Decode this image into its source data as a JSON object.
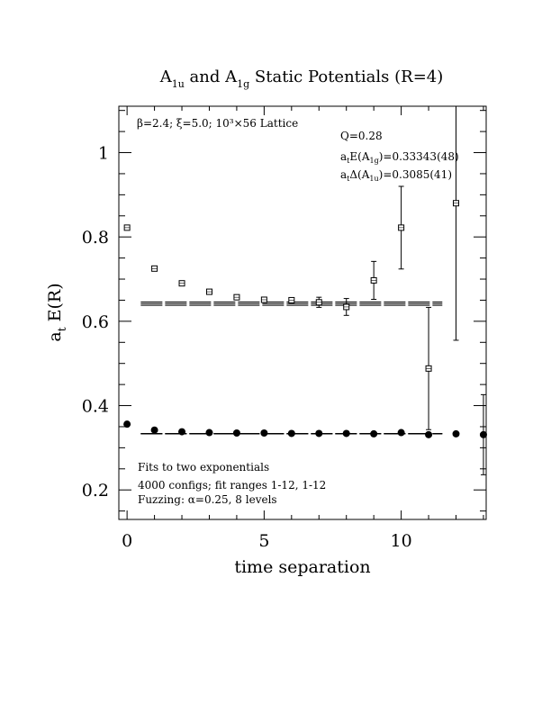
{
  "chart_data": {
    "type": "scatter",
    "title_parts": {
      "a": "A",
      "a_sub": "1u",
      "mid": " and A",
      "mid_sub": "1g",
      "end": " Static Potentials (R=4)"
    },
    "xlabel": "time separation",
    "ylabel": {
      "main": "a",
      "sub": "t",
      "rest": " E(R)"
    },
    "xlim": [
      -0.3,
      13.1
    ],
    "ylim": [
      0.13,
      1.11
    ],
    "x_ticks": [
      "0",
      "5",
      "10"
    ],
    "x_tick_values": [
      0,
      5,
      10
    ],
    "y_ticks": [
      "0.2",
      "0.4",
      "0.6",
      "0.8",
      "1"
    ],
    "y_tick_values": [
      0.2,
      0.4,
      0.6,
      0.8,
      1.0
    ],
    "grid": false,
    "info_top_left": {
      "text": "β=2.4; ξ=5.0; 10³×56 Lattice"
    },
    "info_top_right": {
      "q": "Q=0.28",
      "energy": {
        "a": "a",
        "a_sub": "t",
        "mid": "E(A",
        "mid_sub": "1g",
        "end": ")=0.33343(48)"
      },
      "gap": {
        "a": "a",
        "a_sub": "t",
        "mid": "Δ(A",
        "mid_sub": "1u",
        "end": ")=0.3085(41)"
      }
    },
    "info_bottom_left": [
      "Fits to two exponentials",
      "4000 configs; fit ranges 1-12, 1-12",
      "Fuzzing: α=0.25, 8 levels"
    ],
    "series": [
      {
        "marker": "filled-circle",
        "points": [
          {
            "x": 0,
            "y": 0.356,
            "err": 0
          },
          {
            "x": 1,
            "y": 0.342,
            "err": 0
          },
          {
            "x": 2,
            "y": 0.338,
            "err": 0
          },
          {
            "x": 3,
            "y": 0.336,
            "err": 0
          },
          {
            "x": 4,
            "y": 0.335,
            "err": 0
          },
          {
            "x": 5,
            "y": 0.335,
            "err": 0
          },
          {
            "x": 6,
            "y": 0.334,
            "err": 0
          },
          {
            "x": 7,
            "y": 0.334,
            "err": 0
          },
          {
            "x": 8,
            "y": 0.334,
            "err": 0
          },
          {
            "x": 9,
            "y": 0.333,
            "err": 0
          },
          {
            "x": 10,
            "y": 0.336,
            "err": 0
          },
          {
            "x": 11,
            "y": 0.331,
            "err": 0
          },
          {
            "x": 12,
            "y": 0.333,
            "err": 0
          },
          {
            "x": 13,
            "y": 0.331,
            "err": 0.095
          }
        ],
        "fit": {
          "value": 0.33343,
          "err": 0.00048,
          "x_range": [
            0.5,
            11.5
          ]
        }
      },
      {
        "marker": "open-square",
        "points": [
          {
            "x": 0,
            "y": 0.822,
            "err": 0
          },
          {
            "x": 1,
            "y": 0.725,
            "err": 0
          },
          {
            "x": 2,
            "y": 0.69,
            "err": 0
          },
          {
            "x": 3,
            "y": 0.67,
            "err": 0
          },
          {
            "x": 4,
            "y": 0.657,
            "err": 0.004
          },
          {
            "x": 5,
            "y": 0.651,
            "err": 0.006
          },
          {
            "x": 6,
            "y": 0.65,
            "err": 0.006
          },
          {
            "x": 7,
            "y": 0.645,
            "err": 0.012
          },
          {
            "x": 8,
            "y": 0.634,
            "err": 0.02
          },
          {
            "x": 9,
            "y": 0.697,
            "err": 0.045
          },
          {
            "x": 10,
            "y": 0.822,
            "err": 0.098
          },
          {
            "x": 11,
            "y": 0.488,
            "err": 0.145
          },
          {
            "x": 12,
            "y": 0.88,
            "err": 0.325
          }
        ],
        "fit": {
          "value": 0.6419,
          "err": 0.0041,
          "x_range": [
            0.5,
            11.5
          ]
        }
      }
    ]
  }
}
